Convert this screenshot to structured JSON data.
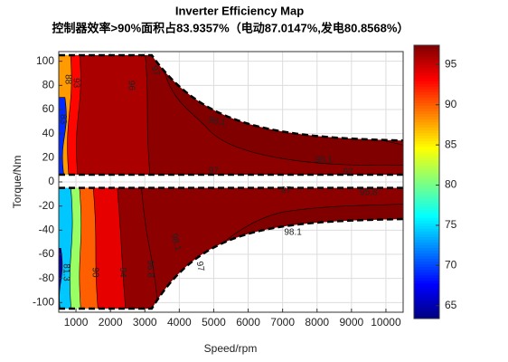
{
  "chart_data": {
    "type": "contour",
    "title": "Inverter Efficiency Map",
    "subtitle": "控制器效率>90%面积占83.9357%（电动87.0147%,发电80.8568%）",
    "x_label": "Speed/rpm",
    "y_label": "Torque/Nm",
    "xlim": [
      500,
      10500
    ],
    "xticks": [
      1000,
      2000,
      3000,
      4000,
      5000,
      6000,
      7000,
      8000,
      9000,
      10000
    ],
    "ylim": [
      -108,
      108
    ],
    "yticks": [
      100,
      80,
      60,
      40,
      20,
      0,
      -20,
      -40,
      -60,
      -80,
      -100
    ],
    "grid": true,
    "clim": [
      63.4,
      97.4
    ],
    "cticks": [
      65,
      70,
      75,
      80,
      85,
      90,
      95
    ],
    "contour_labels": [
      97,
      98.1,
      96,
      93,
      88,
      83,
      98.1,
      97,
      97,
      97,
      95.8,
      98.1,
      98.1,
      81.3,
      90,
      94,
      96.8,
      97
    ]
  }
}
